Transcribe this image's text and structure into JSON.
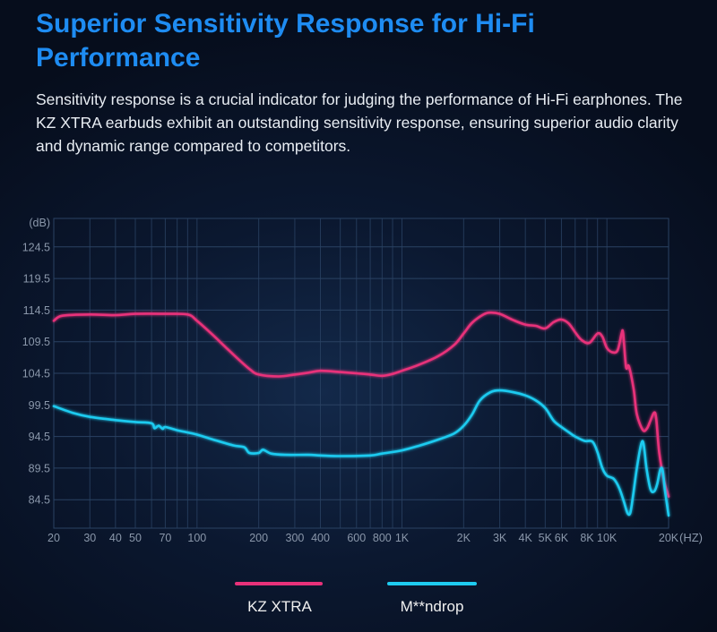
{
  "header": {
    "title": "Superior Sensitivity Response for Hi-Fi Performance",
    "description": "Sensitivity response is a crucial indicator for judging the performance of Hi-Fi earphones. The KZ XTRA earbuds exhibit an outstanding sensitivity response, ensuring superior audio clarity and dynamic range compared to competitors."
  },
  "colors": {
    "background": "#0b1830",
    "grid": "#2a4263",
    "axis_text": "#8a97aa",
    "title": "#1e8cf2"
  },
  "chart_data": {
    "type": "line",
    "title": "",
    "xlabel": "(HZ)",
    "ylabel": "(dB)",
    "xscale": "log",
    "xlim": [
      20,
      20000
    ],
    "ylim": [
      80,
      129
    ],
    "grid": true,
    "legend_position": "bottom",
    "yticks": [
      84.5,
      89.5,
      94.5,
      99.5,
      104.5,
      109.5,
      114.5,
      119.5,
      124.5
    ],
    "xticks": [
      {
        "value": 20,
        "label": "20"
      },
      {
        "value": 30,
        "label": "30"
      },
      {
        "value": 40,
        "label": "40"
      },
      {
        "value": 50,
        "label": "50"
      },
      {
        "value": 70,
        "label": "70"
      },
      {
        "value": 100,
        "label": "100"
      },
      {
        "value": 200,
        "label": "200"
      },
      {
        "value": 300,
        "label": "300"
      },
      {
        "value": 400,
        "label": "400"
      },
      {
        "value": 600,
        "label": "600"
      },
      {
        "value": 800,
        "label": "800"
      },
      {
        "value": 1000,
        "label": "1K"
      },
      {
        "value": 2000,
        "label": "2K"
      },
      {
        "value": 3000,
        "label": "3K"
      },
      {
        "value": 4000,
        "label": "4K"
      },
      {
        "value": 5000,
        "label": "5K"
      },
      {
        "value": 6000,
        "label": "6K"
      },
      {
        "value": 8000,
        "label": "8K"
      },
      {
        "value": 10000,
        "label": "10K"
      },
      {
        "value": 20000,
        "label": "20K"
      }
    ],
    "series": [
      {
        "name": "KZ XTRA",
        "color": "#e8317a",
        "points": [
          [
            20,
            112.8
          ],
          [
            22,
            113.6
          ],
          [
            30,
            113.8
          ],
          [
            40,
            113.7
          ],
          [
            50,
            113.9
          ],
          [
            70,
            113.9
          ],
          [
            90,
            113.8
          ],
          [
            100,
            112.8
          ],
          [
            120,
            110.5
          ],
          [
            150,
            107.5
          ],
          [
            180,
            105.2
          ],
          [
            200,
            104.3
          ],
          [
            250,
            104.0
          ],
          [
            300,
            104.3
          ],
          [
            350,
            104.6
          ],
          [
            400,
            104.9
          ],
          [
            500,
            104.7
          ],
          [
            600,
            104.5
          ],
          [
            700,
            104.3
          ],
          [
            800,
            104.1
          ],
          [
            900,
            104.4
          ],
          [
            1000,
            104.9
          ],
          [
            1200,
            105.8
          ],
          [
            1500,
            107.2
          ],
          [
            1800,
            109.0
          ],
          [
            2000,
            110.8
          ],
          [
            2200,
            112.5
          ],
          [
            2500,
            113.8
          ],
          [
            2700,
            114.1
          ],
          [
            3000,
            113.9
          ],
          [
            3500,
            112.9
          ],
          [
            4000,
            112.2
          ],
          [
            4500,
            112.0
          ],
          [
            5000,
            111.6
          ],
          [
            5500,
            112.6
          ],
          [
            6000,
            113.0
          ],
          [
            6500,
            112.4
          ],
          [
            7000,
            111.0
          ],
          [
            7500,
            109.8
          ],
          [
            8200,
            109.3
          ],
          [
            9000,
            110.8
          ],
          [
            9500,
            110.3
          ],
          [
            10000,
            108.5
          ],
          [
            10700,
            107.8
          ],
          [
            11300,
            108.2
          ],
          [
            11800,
            110.8
          ],
          [
            12000,
            110.8
          ],
          [
            12400,
            105.5
          ],
          [
            12800,
            105.6
          ],
          [
            13500,
            102.0
          ],
          [
            14000,
            98.0
          ],
          [
            15000,
            95.5
          ],
          [
            15700,
            95.8
          ],
          [
            16300,
            97.0
          ],
          [
            17000,
            98.3
          ],
          [
            17400,
            97.3
          ],
          [
            18000,
            92.0
          ],
          [
            19000,
            87.5
          ],
          [
            20000,
            85.0
          ]
        ]
      },
      {
        "name": "M**ndrop",
        "color": "#1ecbf0",
        "points": [
          [
            20,
            99.3
          ],
          [
            25,
            98.2
          ],
          [
            30,
            97.6
          ],
          [
            40,
            97.1
          ],
          [
            50,
            96.8
          ],
          [
            60,
            96.6
          ],
          [
            62,
            95.8
          ],
          [
            65,
            96.2
          ],
          [
            68,
            95.7
          ],
          [
            70,
            96.0
          ],
          [
            80,
            95.5
          ],
          [
            100,
            94.8
          ],
          [
            120,
            94.0
          ],
          [
            150,
            93.1
          ],
          [
            170,
            92.8
          ],
          [
            180,
            91.9
          ],
          [
            200,
            91.9
          ],
          [
            210,
            92.4
          ],
          [
            230,
            91.8
          ],
          [
            270,
            91.6
          ],
          [
            350,
            91.6
          ],
          [
            400,
            91.5
          ],
          [
            500,
            91.4
          ],
          [
            700,
            91.5
          ],
          [
            800,
            91.8
          ],
          [
            1000,
            92.3
          ],
          [
            1200,
            93.0
          ],
          [
            1500,
            94.0
          ],
          [
            1800,
            95.0
          ],
          [
            2000,
            96.2
          ],
          [
            2200,
            98.0
          ],
          [
            2400,
            100.2
          ],
          [
            2700,
            101.5
          ],
          [
            3000,
            101.8
          ],
          [
            3500,
            101.5
          ],
          [
            4000,
            101.0
          ],
          [
            4500,
            100.2
          ],
          [
            5000,
            99.0
          ],
          [
            5500,
            97.0
          ],
          [
            6000,
            96.0
          ],
          [
            6500,
            95.2
          ],
          [
            7000,
            94.5
          ],
          [
            7800,
            93.8
          ],
          [
            8500,
            93.7
          ],
          [
            9000,
            92.0
          ],
          [
            9500,
            89.5
          ],
          [
            10000,
            88.3
          ],
          [
            10800,
            87.8
          ],
          [
            11500,
            86.3
          ],
          [
            12100,
            84.2
          ],
          [
            12600,
            82.4
          ],
          [
            13000,
            82.4
          ],
          [
            13400,
            85.0
          ],
          [
            14000,
            89.5
          ],
          [
            14700,
            93.3
          ],
          [
            15100,
            93.3
          ],
          [
            15600,
            89.5
          ],
          [
            16300,
            86.2
          ],
          [
            17000,
            85.8
          ],
          [
            17600,
            87.0
          ],
          [
            18200,
            89.2
          ],
          [
            18700,
            89.2
          ],
          [
            19200,
            86.0
          ],
          [
            20000,
            82.0
          ]
        ]
      }
    ]
  }
}
